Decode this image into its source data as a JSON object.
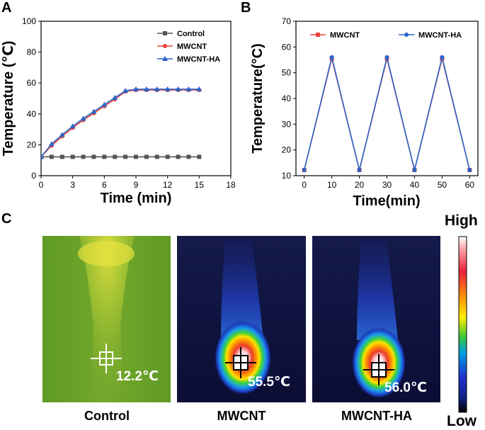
{
  "panels": {
    "a": "A",
    "b": "B",
    "c": "C"
  },
  "chart_data": [
    {
      "type": "line",
      "xlabel": "Time (min)",
      "ylabel": "Temperature (℃)",
      "xlim": [
        0,
        18
      ],
      "ylim": [
        0,
        100
      ],
      "xticks": [
        0,
        3,
        6,
        9,
        12,
        15,
        18
      ],
      "yticks": [
        0,
        20,
        40,
        60,
        80,
        100
      ],
      "legend_position": "top-right",
      "x": [
        0,
        1,
        2,
        3,
        4,
        5,
        6,
        7,
        8,
        9,
        10,
        11,
        12,
        13,
        14,
        15
      ],
      "series": [
        {
          "name": "Control",
          "color": "#555555",
          "marker": "square",
          "values": [
            12.2,
            12.2,
            12.2,
            12.2,
            12.2,
            12.2,
            12.2,
            12.2,
            12.2,
            12.2,
            12.2,
            12.2,
            12.2,
            12.2,
            12.2,
            12.2
          ]
        },
        {
          "name": "MWCNT",
          "color": "#e8453c",
          "marker": "circle",
          "values": [
            12.2,
            19.5,
            25.5,
            31,
            36,
            40.5,
            45,
            49.5,
            54.5,
            55.5,
            55.5,
            55.5,
            55.5,
            55.5,
            55.5,
            55.5
          ]
        },
        {
          "name": "MWCNT-HA",
          "color": "#2a64c8",
          "marker": "triangle",
          "values": [
            12.2,
            20.5,
            26.5,
            32,
            37,
            41.5,
            46,
            50.5,
            55,
            56,
            56,
            56,
            56,
            56,
            56,
            56
          ]
        }
      ]
    },
    {
      "type": "line",
      "xlabel": "Time(min)",
      "ylabel": "Temperature(°C)",
      "xlim": [
        -3,
        63
      ],
      "ylim": [
        10,
        70
      ],
      "xticks": [
        0,
        10,
        20,
        30,
        40,
        50,
        60
      ],
      "yticks": [
        10,
        20,
        30,
        40,
        50,
        60,
        70
      ],
      "legend_position": "top",
      "x": [
        0,
        10,
        20,
        30,
        40,
        50,
        60
      ],
      "series": [
        {
          "name": "MWCNT",
          "color": "#e8453c",
          "marker": "square",
          "values": [
            12.2,
            55.5,
            12.2,
            55.5,
            12.2,
            55.5,
            12.2
          ]
        },
        {
          "name": "MWCNT-HA",
          "color": "#2a64c8",
          "marker": "circle",
          "values": [
            12.2,
            56,
            12.2,
            56,
            12.2,
            56,
            12.2
          ]
        }
      ]
    }
  ],
  "thermal_images": [
    {
      "label": "Control",
      "temperature": "12.2℃"
    },
    {
      "label": "MWCNT",
      "temperature": "55.5℃"
    },
    {
      "label": "MWCNT-HA",
      "temperature": "56.0℃"
    }
  ],
  "colorbar": {
    "high": "High",
    "low": "Low"
  }
}
